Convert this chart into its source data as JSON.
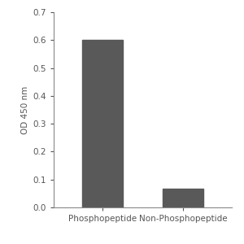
{
  "categories": [
    "Phosphopeptide",
    "Non-Phosphopeptide"
  ],
  "values": [
    0.602,
    0.068
  ],
  "bar_color": "#595959",
  "ylabel": "OD 450 nm",
  "ylim": [
    0,
    0.7
  ],
  "yticks": [
    0,
    0.1,
    0.2,
    0.3,
    0.4,
    0.5,
    0.6,
    0.7
  ],
  "background_color": "#ffffff",
  "bar_width": 0.5,
  "tick_fontsize": 7.5,
  "label_fontsize": 7.5,
  "tick_color": "#888888",
  "text_color": "#555555"
}
